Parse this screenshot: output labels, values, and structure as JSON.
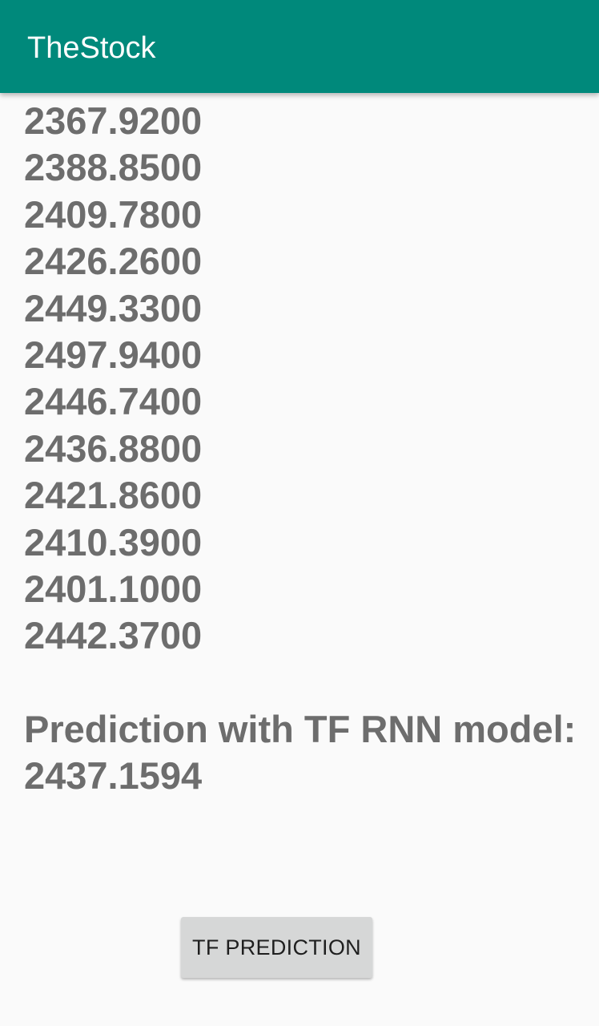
{
  "app_bar": {
    "title": "TheStock",
    "background_color": "#00897b"
  },
  "prices": [
    "2367.9200",
    "2388.8500",
    "2409.7800",
    "2426.2600",
    "2449.3300",
    "2497.9400",
    "2446.7400",
    "2436.8800",
    "2421.8600",
    "2410.3900",
    "2401.1000",
    "2442.3700"
  ],
  "prediction": {
    "label": "Prediction with TF RNN model:",
    "value": "2437.1594"
  },
  "actions": {
    "predict_button_label": "TF PREDICTION"
  }
}
